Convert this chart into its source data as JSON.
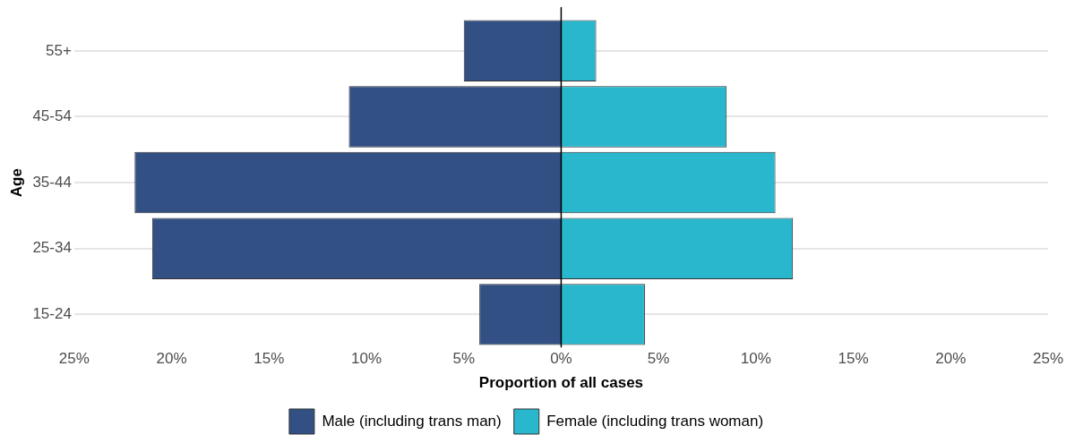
{
  "chart_data": {
    "type": "bar",
    "orientation": "horizontal",
    "stacked": true,
    "xlabel": "Proportion of all cases",
    "ylabel": "Age",
    "categories": [
      "55+",
      "45-54",
      "35-44",
      "25-34",
      "15-24"
    ],
    "series": [
      {
        "name": "Male (including trans man)",
        "color": "#325084",
        "values": [
          -5.0,
          -10.9,
          -21.9,
          -21.0,
          -4.2
        ]
      },
      {
        "name": "Female (including trans woman)",
        "color": "#29b7cd",
        "values": [
          1.8,
          8.5,
          11.0,
          11.9,
          4.3
        ]
      }
    ],
    "xlim": [
      -25,
      25
    ],
    "xticks": [
      {
        "value": -25,
        "label": "25%"
      },
      {
        "value": -20,
        "label": "20%"
      },
      {
        "value": -15,
        "label": "15%"
      },
      {
        "value": -10,
        "label": "10%"
      },
      {
        "value": -5,
        "label": "5%"
      },
      {
        "value": 0,
        "label": "0%"
      },
      {
        "value": 5,
        "label": "5%"
      },
      {
        "value": 10,
        "label": "10%"
      },
      {
        "value": 15,
        "label": "15%"
      },
      {
        "value": 20,
        "label": "20%"
      },
      {
        "value": 25,
        "label": "25%"
      }
    ],
    "ref_lines": [
      {
        "axis": "x",
        "value": 0,
        "color": "#000000"
      }
    ],
    "grid": "y",
    "legend": "bottom"
  }
}
